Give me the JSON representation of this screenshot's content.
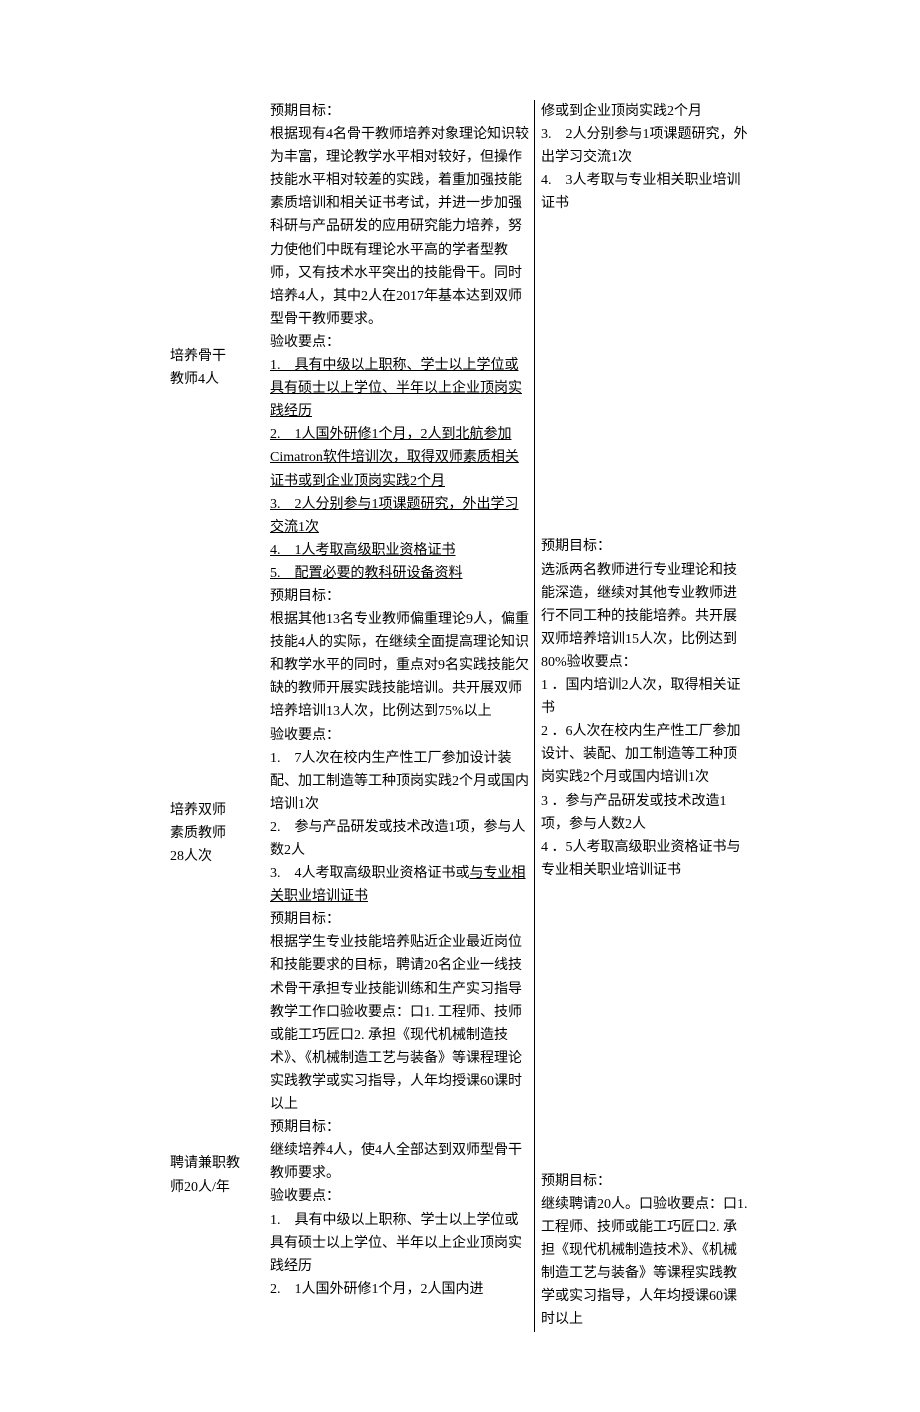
{
  "left": {
    "label1_line1": "培养骨干",
    "label1_line2": "教师4人",
    "label2_line1": "培养双师",
    "label2_line2": "素质教师",
    "label2_line3": "28人次",
    "label3_line1": "聘请兼职教",
    "label3_line2": "师20人/年"
  },
  "mid": {
    "p01": "预期目标：",
    "p02": "根据现有4名骨干教师培养对象理论知识较为丰富，理论教学水平相对较好，但操作技能水平相对较差的实践，着重加强技能素质培训和相关证书考试，并进一步加强科研与产品研发的应用研究能力培养，努力使他们中既有理论水平高的学者型教师，又有技术水平突出的技能骨干。同时培养4人，其中2人在2017年基本达到双师型骨干教师要求。",
    "p03": "验收要点：",
    "p04": "1.　具有中级以上职称、学士以上学位或具有硕士以上学位、半年以上企业顶岗实践经历",
    "p05": "2.　1人国外研修1个月，2人到北航参加Cimatron软件培训次，取得双师素质相关证书或到企业顶岗实践2个月",
    "p06": "3.　2人分别参与1项课题研究，外出学习交流1次",
    "p07": "4.　1人考取高级职业资格证书",
    "p08": "5.　配置必要的教科研设备资料",
    "p09": "预期目标：",
    "p10": "根据其他13名专业教师偏重理论9人，偏重技能4人的实际，在继续全面提高理论知识和教学水平的同时，重点对9名实践技能欠缺的教师开展实践技能培训。共开展双师培养培训13人次，比例达到75%以上",
    "p11": "验收要点：",
    "p12": "1.　7人次在校内生产性工厂参加设计装配、加工制造等工种顶岗实践2个月或国内培训1次",
    "p13": "2.　参与产品研发或技术改造1项，参与人数2人",
    "p14a": "3.　4人考取高级职业资格证书或",
    "p14b": "与专业相关职业培训证书",
    "p15": "预期目标：",
    "p16": "根据学生专业技能培养贴近企业最近岗位和技能要求的目标，聘请20名企业一线技术骨干承担专业技能训练和生产实习指导教学工作口验收要点：口1. 工程师、技师或能工巧匠口2. 承担《现代机械制造技术》、《机械制造工艺与装备》等课程理论实践教学或实习指导，人年均授课60课时以上",
    "p17": "预期目标：",
    "p18": "继续培养4人，使4人全部达到双师型骨干教师要求。",
    "p19": "验收要点：",
    "p20": "1.　具有中级以上职称、学士以上学位或具有硕士以上学位、半年以上企业顶岗实践经历",
    "p21": "2.　1人国外研修1个月，2人国内进"
  },
  "right": {
    "r01": "修或到企业顶岗实践2个月",
    "r02": "3.　2人分别参与1项课题研究，外出学习交流1次",
    "r03": "4.　3人考取与专业相关职业培训证书",
    "r04": "预期目标：",
    "r05": "选派两名教师进行专业理论和技能深造，继续对其他专业教师进行不同工种的技能培养。共开展双师培养培训15人次，比例达到80%验收要点：",
    "r06": "1 ．国内培训2人次，取得相关证书",
    "r07": "2 ．6人次在校内生产性工厂参加设计、装配、加工制造等工种顶岗实践2个月或国内培训1次",
    "r08": "3 ．参与产品研发或技术改造1项，参与人数2人",
    "r09": "4 ．5人考取高级职业资格证书与专业相关职业培训证书",
    "r10": "预期目标：",
    "r11": "继续聘请20人。口验收要点：口1. 工程师、技师或能工巧匠口2. 承担《现代机械制造技术》、《机械制造工艺与装备》等课程实践教学或实习指导，人年均授课60课时以上"
  }
}
